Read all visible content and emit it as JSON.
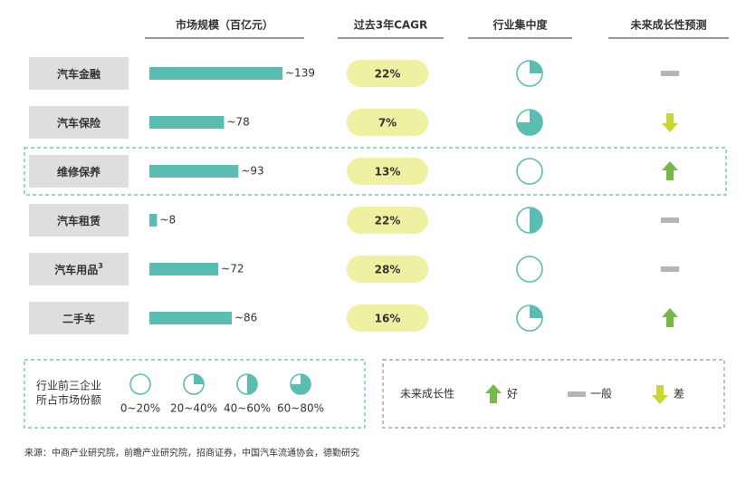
{
  "headers": [
    "市场规模（百亿元）",
    "过去3年CAGR",
    "行业集中度",
    "未来成长性预测"
  ],
  "rows": [
    {
      "name": "汽车金融",
      "market_size": {
        "value": 139,
        "label": "~139"
      },
      "cagr": "22%",
      "concentration": 0.25,
      "outlook": "一般"
    },
    {
      "name": "汽车保险",
      "market_size": {
        "value": 78,
        "label": "~78"
      },
      "cagr": "7%",
      "concentration": 0.75,
      "outlook": "差"
    },
    {
      "name": "维修保养",
      "market_size": {
        "value": 93,
        "label": "~93"
      },
      "cagr": "13%",
      "concentration": 0,
      "outlook": "好",
      "highlight": true
    },
    {
      "name": "汽车租赁",
      "market_size": {
        "value": 8,
        "label": "~8"
      },
      "cagr": "22%",
      "concentration": 0.5,
      "outlook": "一般"
    },
    {
      "name": "汽车用品",
      "note": "3",
      "market_size": {
        "value": 72,
        "label": "~72"
      },
      "cagr": "28%",
      "concentration": 0,
      "outlook": "一般"
    },
    {
      "name": "二手车",
      "market_size": {
        "value": 86,
        "label": "~86"
      },
      "cagr": "16%",
      "concentration": 0.25,
      "outlook": "好"
    }
  ],
  "concentration_legend": {
    "title": [
      "行业前三企业",
      "所占市场份额"
    ],
    "items": [
      {
        "label": "0~20%",
        "fill": 0
      },
      {
        "label": "20~40%",
        "fill": 0.25
      },
      {
        "label": "40~60%",
        "fill": 0.5
      },
      {
        "label": "60~80%",
        "fill": 0.75
      }
    ]
  },
  "outlook_legend": {
    "title": "未来成长性",
    "items": [
      "好",
      "一般",
      "差"
    ]
  },
  "colors": {
    "bar": "#5bbcb2",
    "pill": "#eef0a2",
    "good": "#77b84a",
    "neutral": "#b5b5b5",
    "bad": "#c9d633",
    "name_box": "#dedede"
  },
  "source": "来源：中商产业研究院，前瞻产业研究院，招商证券，中国汽车流通协会，德勤研究"
}
